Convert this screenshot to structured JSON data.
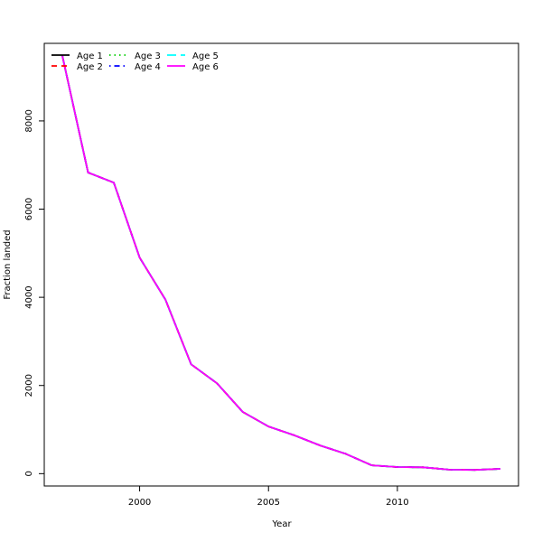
{
  "chart_data": {
    "type": "line",
    "title": "",
    "xlabel": "Year",
    "ylabel": "Fraction landed",
    "xlim": [
      1996.3,
      2014.7
    ],
    "ylim": [
      -280,
      9760
    ],
    "x_ticks": [
      2000,
      2005,
      2010
    ],
    "y_ticks": [
      0,
      2000,
      4000,
      6000,
      8000
    ],
    "grid": false,
    "legend_position": "top-left",
    "x": [
      1997,
      1998,
      1999,
      2000,
      2001,
      2002,
      2003,
      2004,
      2005,
      2006,
      2007,
      2008,
      2009,
      2010,
      2011,
      2012,
      2013,
      2014
    ],
    "series": [
      {
        "name": "Age 1",
        "color": "#000000",
        "dash": "solid",
        "values": [
          9480,
          6830,
          6600,
          4900,
          3950,
          2480,
          2050,
          1400,
          1070,
          870,
          640,
          450,
          190,
          150,
          145,
          90,
          85,
          110
        ]
      },
      {
        "name": "Age 2",
        "color": "#ff0000",
        "dash": "dashed",
        "values": [
          9480,
          6830,
          6600,
          4900,
          3950,
          2480,
          2050,
          1400,
          1070,
          870,
          640,
          450,
          190,
          150,
          145,
          90,
          85,
          110
        ]
      },
      {
        "name": "Age 3",
        "color": "#00cd00",
        "dash": "dotted",
        "values": [
          9480,
          6830,
          6600,
          4900,
          3950,
          2480,
          2050,
          1400,
          1070,
          870,
          640,
          450,
          190,
          150,
          145,
          90,
          85,
          110
        ]
      },
      {
        "name": "Age 4",
        "color": "#0000ff",
        "dash": "dotdash",
        "values": [
          9480,
          6830,
          6600,
          4900,
          3950,
          2480,
          2050,
          1400,
          1070,
          870,
          640,
          450,
          190,
          150,
          145,
          90,
          85,
          110
        ]
      },
      {
        "name": "Age 5",
        "color": "#00ffff",
        "dash": "longdash",
        "values": [
          9480,
          6830,
          6600,
          4900,
          3950,
          2480,
          2050,
          1400,
          1070,
          870,
          640,
          450,
          190,
          150,
          145,
          90,
          85,
          110
        ]
      },
      {
        "name": "Age 6",
        "color": "#ff00ff",
        "dash": "solid",
        "values": [
          9480,
          6830,
          6600,
          4900,
          3950,
          2480,
          2050,
          1400,
          1070,
          870,
          640,
          450,
          190,
          150,
          145,
          90,
          85,
          110
        ]
      }
    ]
  }
}
